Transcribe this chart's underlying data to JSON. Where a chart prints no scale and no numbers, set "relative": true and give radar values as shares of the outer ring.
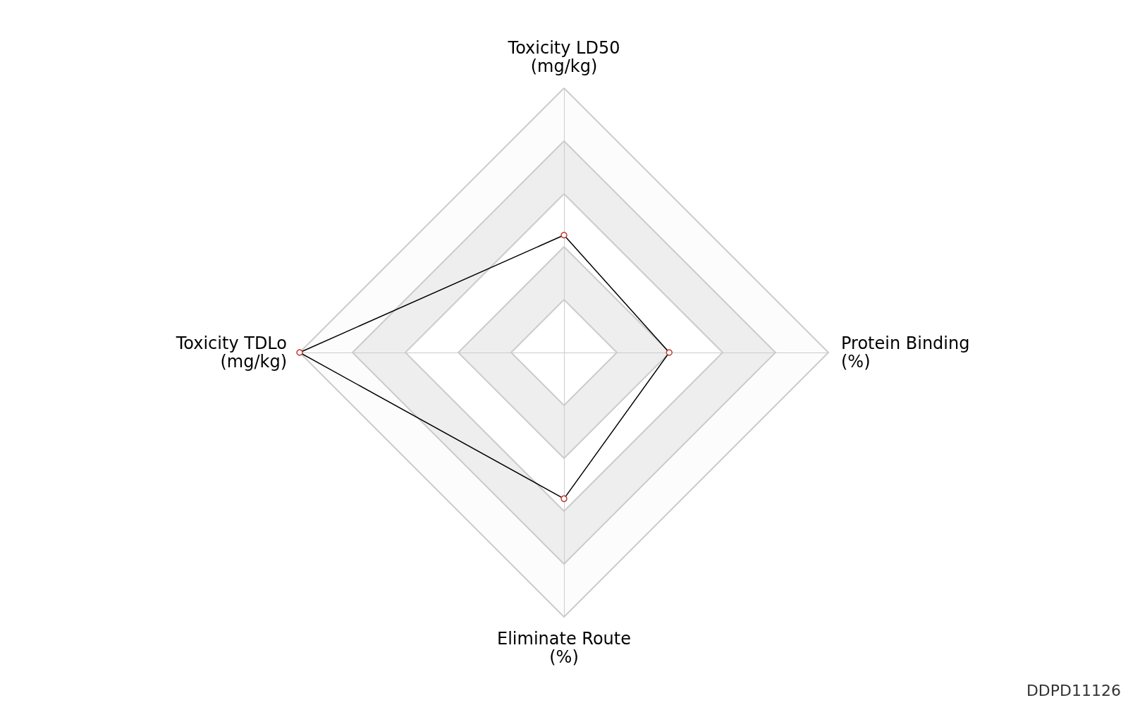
{
  "chart_data": {
    "type": "radar",
    "relative": true,
    "categories": [
      "Toxicity LD50\n(mg/kg)",
      "Protein Binding\n(%)",
      "Eliminate Route\n(%)",
      "Toxicity TDLo\n(mg/kg)"
    ],
    "series": [
      {
        "color": "#000000",
        "values": [
          0.444,
          0.398,
          0.553,
          1
        ]
      }
    ],
    "marker": "circle",
    "annotations": [
      "DDPD11126"
    ]
  }
}
